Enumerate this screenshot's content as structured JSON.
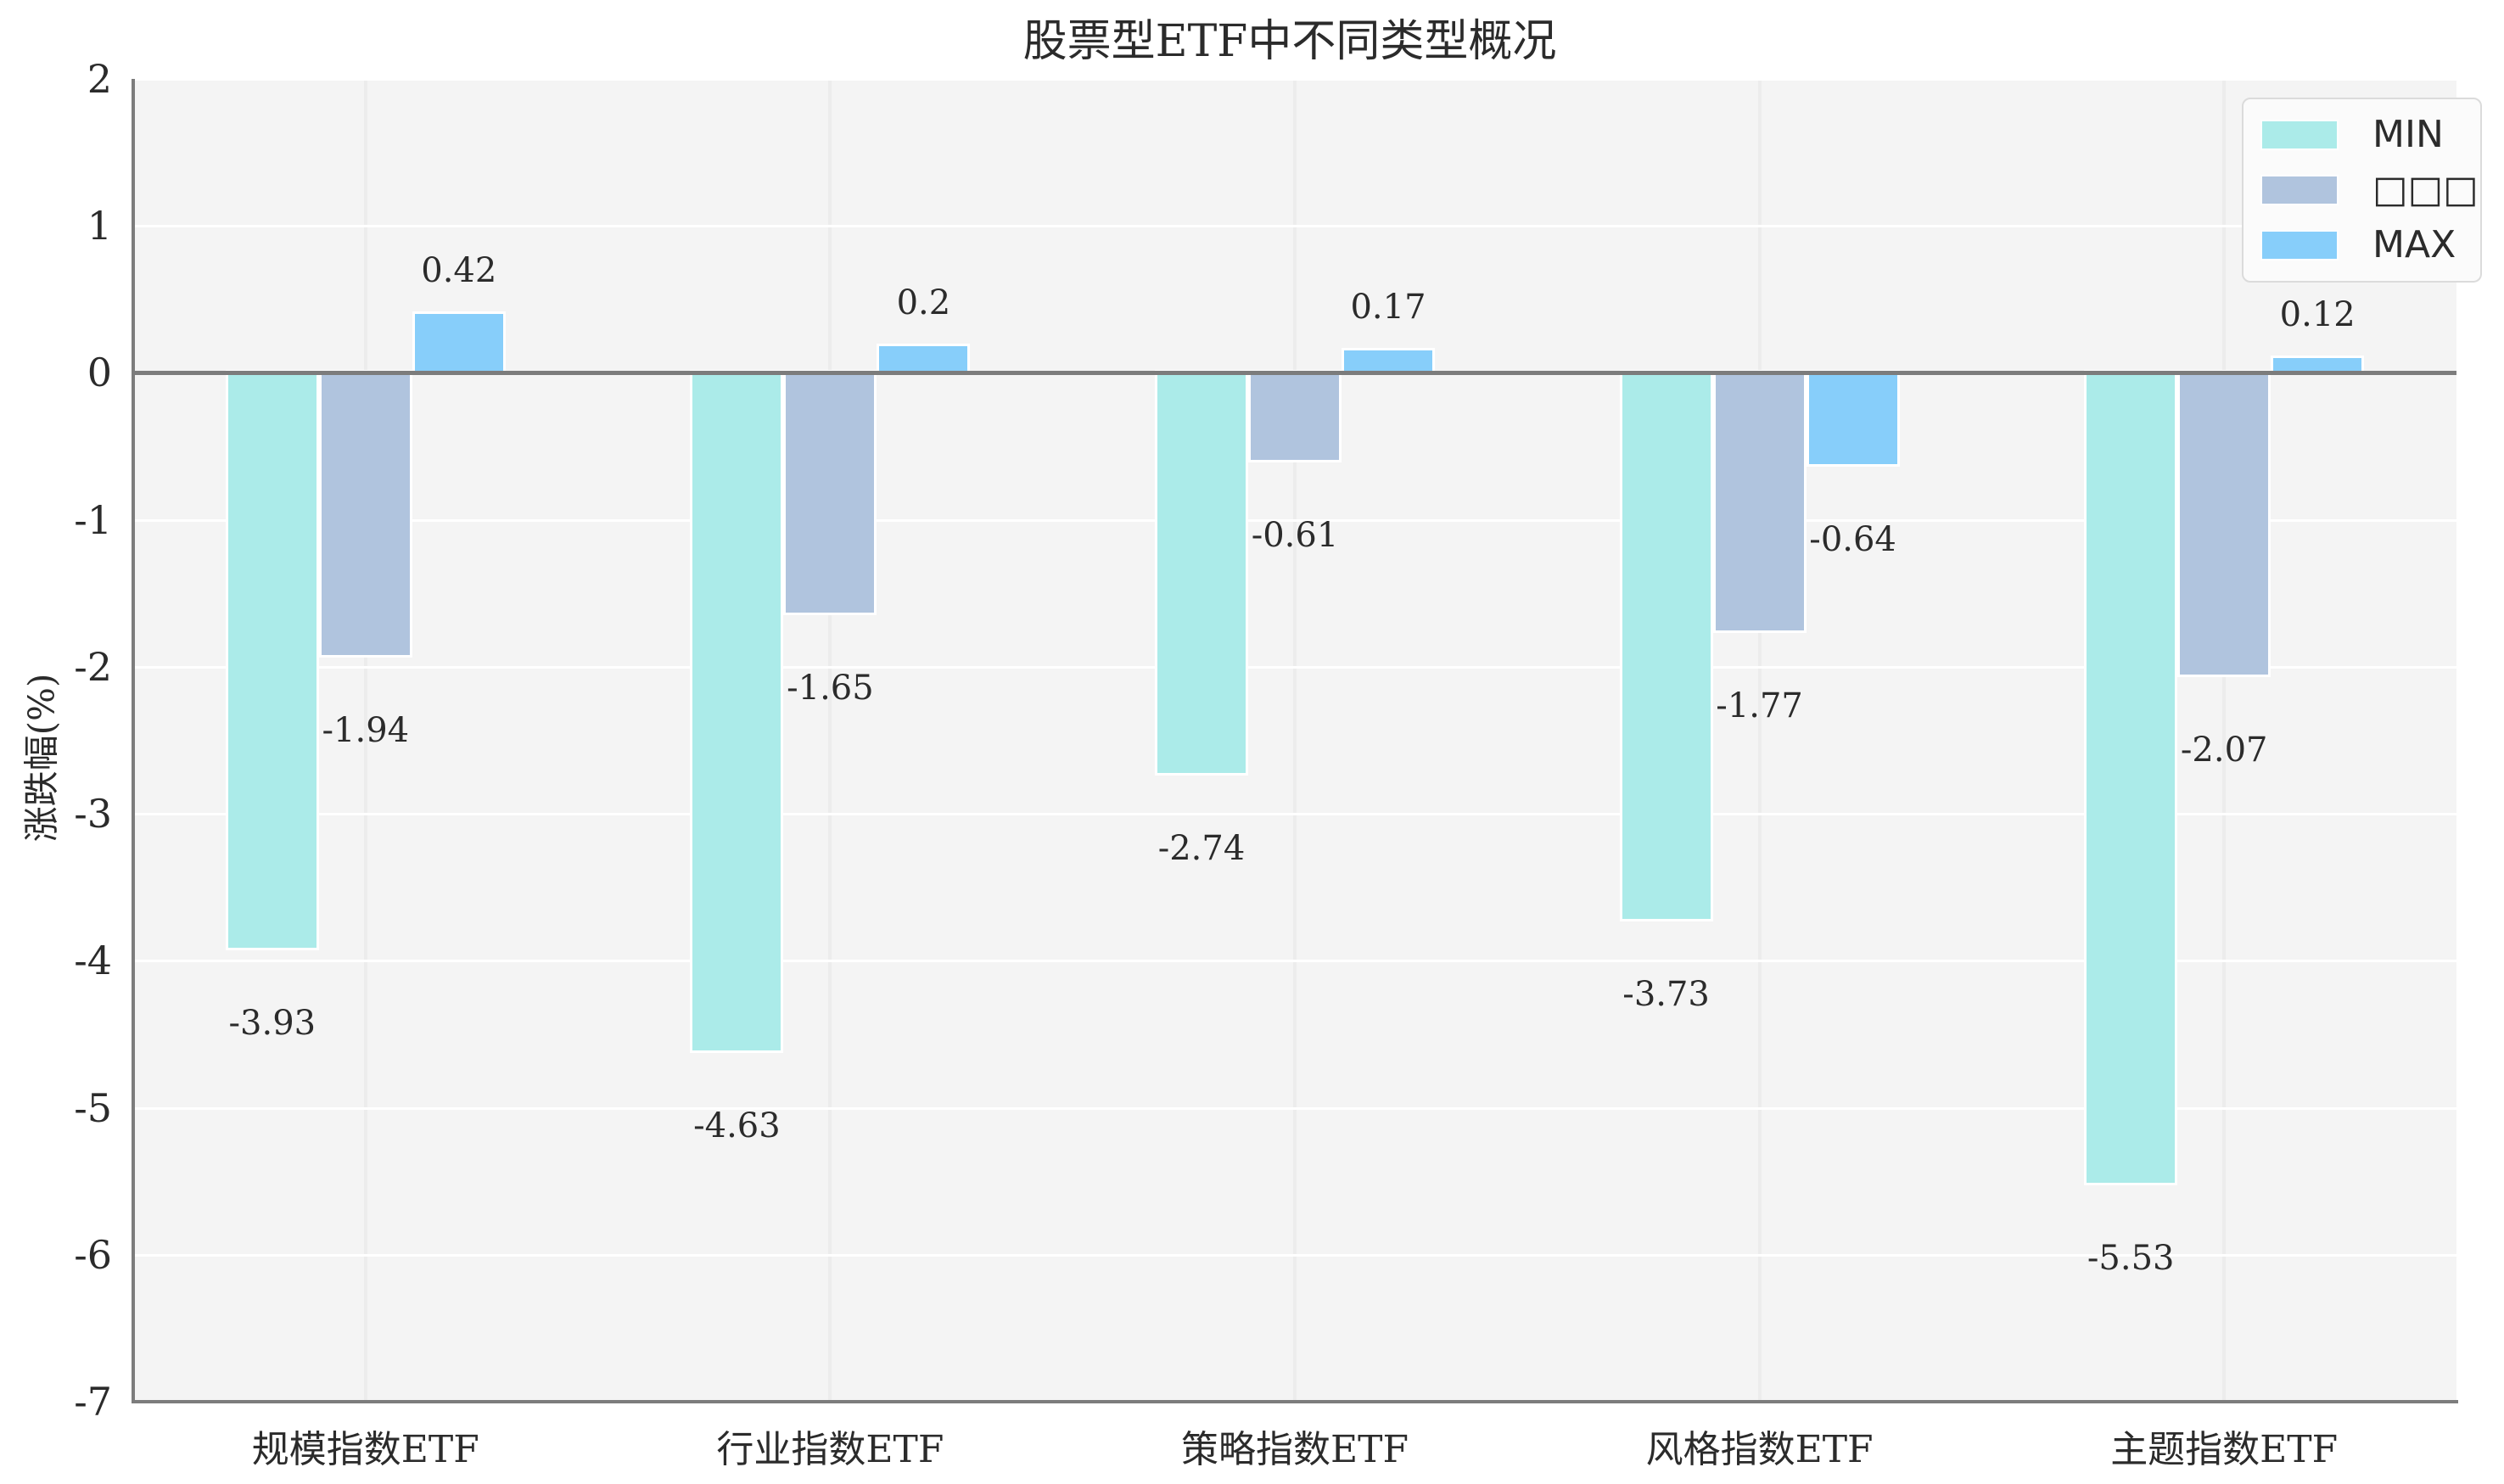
{
  "title": "股票型ETF中不同类型概况",
  "chart_data": {
    "type": "bar",
    "title": "股票型ETF中不同类型概况",
    "ylabel": "涨跌幅(%)",
    "xlabel": "",
    "ylim": [
      -7,
      2
    ],
    "yticks": [
      2,
      1,
      0,
      -1,
      -2,
      -3,
      -4,
      -5,
      -6,
      -7
    ],
    "categories": [
      "规模指数ETF",
      "行业指数ETF",
      "策略指数ETF",
      "风格指数ETF",
      "主题指数ETF"
    ],
    "series": [
      {
        "name": "MIN",
        "color": "#ABEBE9",
        "values": [
          -3.93,
          -4.63,
          -2.74,
          -3.73,
          -5.53
        ],
        "labels": [
          "-3.93",
          "-4.63",
          "-2.74",
          "-3.73",
          "-5.53"
        ]
      },
      {
        "name": "□□□",
        "color": "#B0C4DE",
        "values": [
          -1.94,
          -1.65,
          -0.61,
          -1.77,
          -2.07
        ],
        "labels": [
          "-1.94",
          "-1.65",
          "-0.61",
          "-1.77",
          "-2.07"
        ]
      },
      {
        "name": "MAX",
        "color": "#87CEFA",
        "values": [
          0.42,
          0.2,
          0.17,
          -0.64,
          0.12
        ],
        "labels": [
          "0.42",
          "0.2",
          "0.17",
          "-0.64",
          "0.12"
        ]
      }
    ],
    "grid": true,
    "legend_position": "upper-right",
    "colors": {
      "plot_bg": "#F4F4F4",
      "h_grid": "#FFFFFF",
      "v_grid": "#ECECEC",
      "axis": "#7C7C7C",
      "text": "#2B2B2B"
    }
  }
}
